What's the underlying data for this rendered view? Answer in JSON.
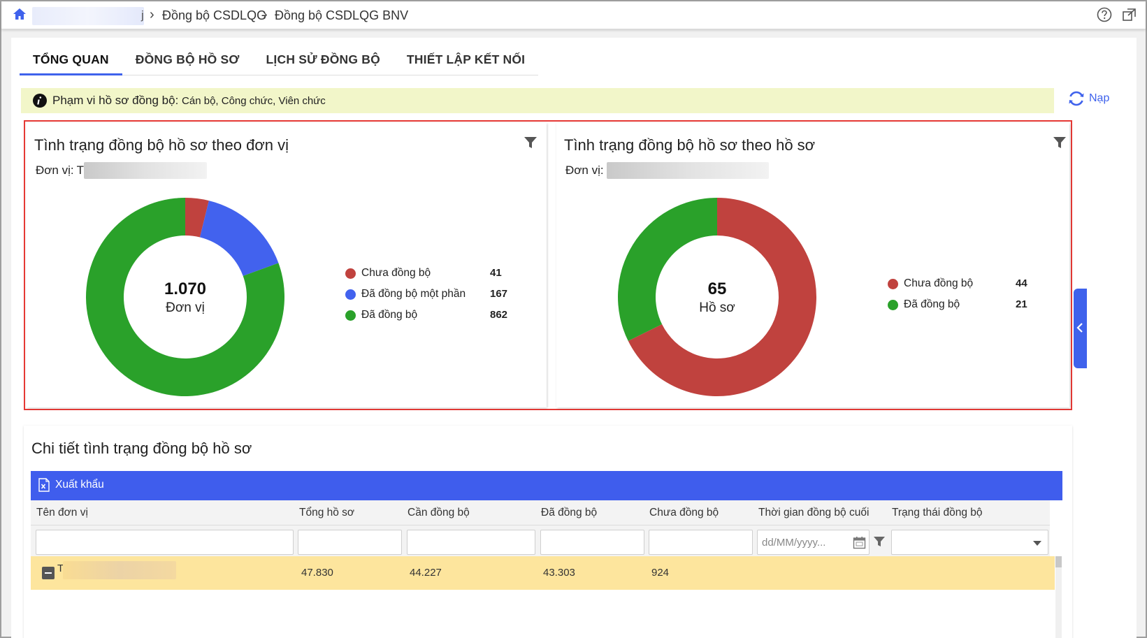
{
  "breadcrumb": {
    "tail": "j",
    "items": [
      "Đồng bộ CSDLQG",
      "Đồng bộ CSDLQG BNV"
    ]
  },
  "tabs": [
    {
      "label": "TỔNG QUAN",
      "active": true
    },
    {
      "label": "ĐỒNG BỘ HỒ SƠ",
      "active": false
    },
    {
      "label": "LỊCH SỬ ĐỒNG BỘ",
      "active": false
    },
    {
      "label": "THIẾT LẬP KẾT NỐI",
      "active": false
    }
  ],
  "info": {
    "label": "Phạm vi hồ sơ đồng bộ:",
    "value": "Cán bộ, Công chức, Viên chức"
  },
  "reload_label": "Nạp",
  "panel_unit": {
    "title": "Tình trạng đồng bộ hồ sơ theo đơn vị",
    "unit_label": "Đơn vị:",
    "unit_value_start": "T",
    "center_value": "1.070",
    "center_label": "Đơn vị"
  },
  "panel_profile": {
    "title": "Tình trạng đồng bộ hồ sơ theo hồ sơ",
    "unit_label": "Đơn vị:",
    "unit_value_start": "",
    "center_value": "65",
    "center_label": "Hồ sơ"
  },
  "chart_data": [
    {
      "type": "pie",
      "title": "Tình trạng đồng bộ hồ sơ theo đơn vị",
      "categories": [
        "Chưa đồng bộ",
        "Đã đồng bộ một phần",
        "Đã đồng bộ"
      ],
      "values": [
        41,
        167,
        862
      ],
      "value_labels": [
        "41",
        "167",
        "862"
      ],
      "colors": [
        "#c0423e",
        "#4262ee",
        "#2aa12a"
      ],
      "legend": "right"
    },
    {
      "type": "pie",
      "title": "Tình trạng đồng bộ hồ sơ theo hồ sơ",
      "categories": [
        "Chưa đồng bộ",
        "Đã đồng bộ"
      ],
      "values": [
        44,
        21
      ],
      "value_labels": [
        "44",
        "21"
      ],
      "colors": [
        "#c0423e",
        "#2aa12a"
      ],
      "legend": "right"
    }
  ],
  "detail": {
    "title": "Chi tiết tình trạng đồng bộ hồ sơ",
    "export_label": "Xuất khẩu",
    "columns": [
      "Tên đơn vị",
      "Tổng hồ sơ",
      "Cần đồng bộ",
      "Đã đồng bộ",
      "Chưa đồng bộ",
      "Thời gian đồng bộ cuối",
      "Trạng thái đồng bộ"
    ],
    "date_placeholder": "dd/MM/yyyy...",
    "rows": [
      {
        "name_start": "T",
        "total": "47.830",
        "need_sync": "44.227",
        "synced": "43.303",
        "not_synced": "924",
        "last_sync": "",
        "status": ""
      }
    ]
  },
  "colors": {
    "accent": "#3f62ec",
    "not_synced": "#c0423e",
    "partial": "#4262ee",
    "synced": "#2aa12a",
    "info_bg": "#f2f6c9",
    "row_highlight": "#fde59d",
    "panel_border": "#e53935"
  }
}
